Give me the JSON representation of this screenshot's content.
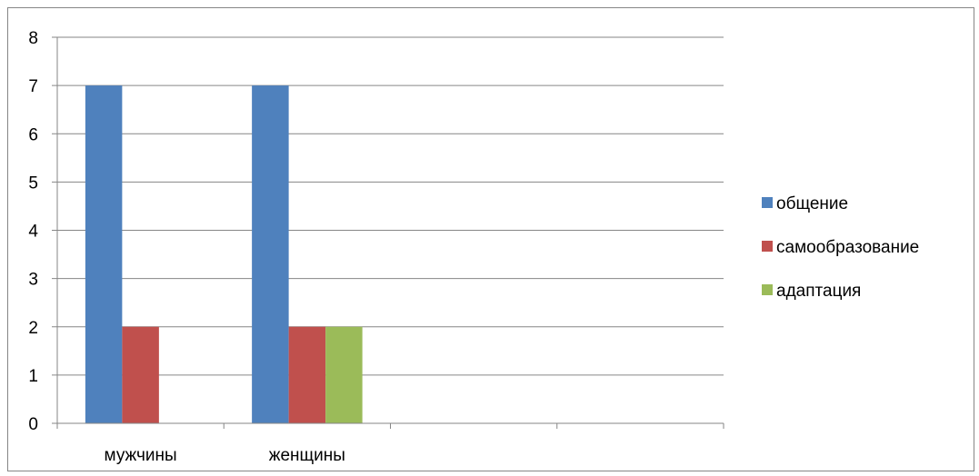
{
  "chart_data": {
    "type": "bar",
    "categories": [
      "мужчины",
      "женщины",
      "",
      ""
    ],
    "series": [
      {
        "name": "общение",
        "values": [
          7,
          7,
          null,
          null
        ],
        "color": "#4F81BD"
      },
      {
        "name": "самообразование",
        "values": [
          2,
          2,
          null,
          null
        ],
        "color": "#C0504D"
      },
      {
        "name": "адаптация",
        "values": [
          null,
          2,
          null,
          null
        ],
        "color": "#9BBB59"
      }
    ],
    "title": "",
    "xlabel": "",
    "ylabel": "",
    "ylim": [
      0,
      8
    ],
    "yticks": [
      0,
      1,
      2,
      3,
      4,
      5,
      6,
      7,
      8
    ],
    "grid": true,
    "legend_position": "right",
    "gridline_color": "#868686"
  }
}
